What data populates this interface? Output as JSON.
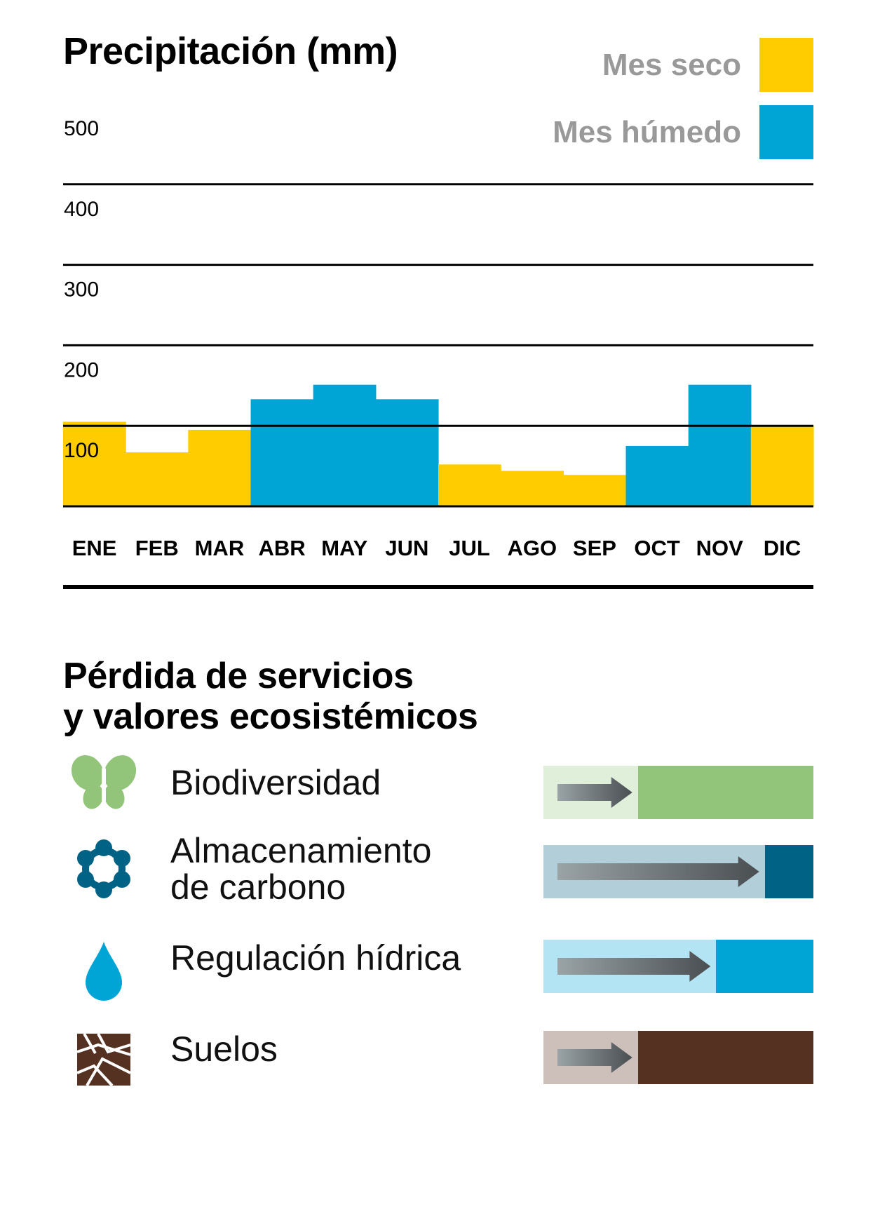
{
  "chart_data": {
    "type": "bar",
    "title": "Precipitación (mm)",
    "categories": [
      "ENE",
      "FEB",
      "MAR",
      "ABR",
      "MAY",
      "JUN",
      "JUL",
      "AGO",
      "SEP",
      "OCT",
      "NOV",
      "DIC"
    ],
    "values": [
      105,
      67,
      95,
      133,
      151,
      133,
      52,
      44,
      39,
      75,
      151,
      100
    ],
    "month_type": [
      "dry",
      "dry",
      "dry",
      "wet",
      "wet",
      "wet",
      "dry",
      "dry",
      "dry",
      "wet",
      "wet",
      "dry"
    ],
    "yticks": [
      100,
      200,
      300,
      400,
      500
    ],
    "ylim": [
      0,
      500
    ],
    "legend": [
      {
        "key": "dry",
        "label": "Mes seco",
        "color": "#FFCC00"
      },
      {
        "key": "wet",
        "label": "Mes húmedo",
        "color": "#00A5D6"
      }
    ],
    "legend_position": "top-right",
    "grid": true
  },
  "services": {
    "title_line1": "Pérdida de servicios",
    "title_line2": "y valores ecosistémicos",
    "items": [
      {
        "label_lines": [
          "Biodiversidad"
        ],
        "icon": "butterfly-icon",
        "light_color": "#E0EFDA",
        "dark_color": "#92C57A",
        "loss_fraction": 0.35
      },
      {
        "label_lines": [
          "Almacenamiento",
          "de carbono"
        ],
        "icon": "carbon-molecule-icon",
        "light_color": "#B2CED9",
        "dark_color": "#006385",
        "loss_fraction": 0.82
      },
      {
        "label_lines": [
          "Regulación hídrica"
        ],
        "icon": "water-drop-icon",
        "light_color": "#B3E4F3",
        "dark_color": "#00A5D6",
        "loss_fraction": 0.64
      },
      {
        "label_lines": [
          "Suelos"
        ],
        "icon": "soil-icon",
        "light_color": "#CDC0BB",
        "dark_color": "#553122",
        "loss_fraction": 0.35
      }
    ]
  }
}
